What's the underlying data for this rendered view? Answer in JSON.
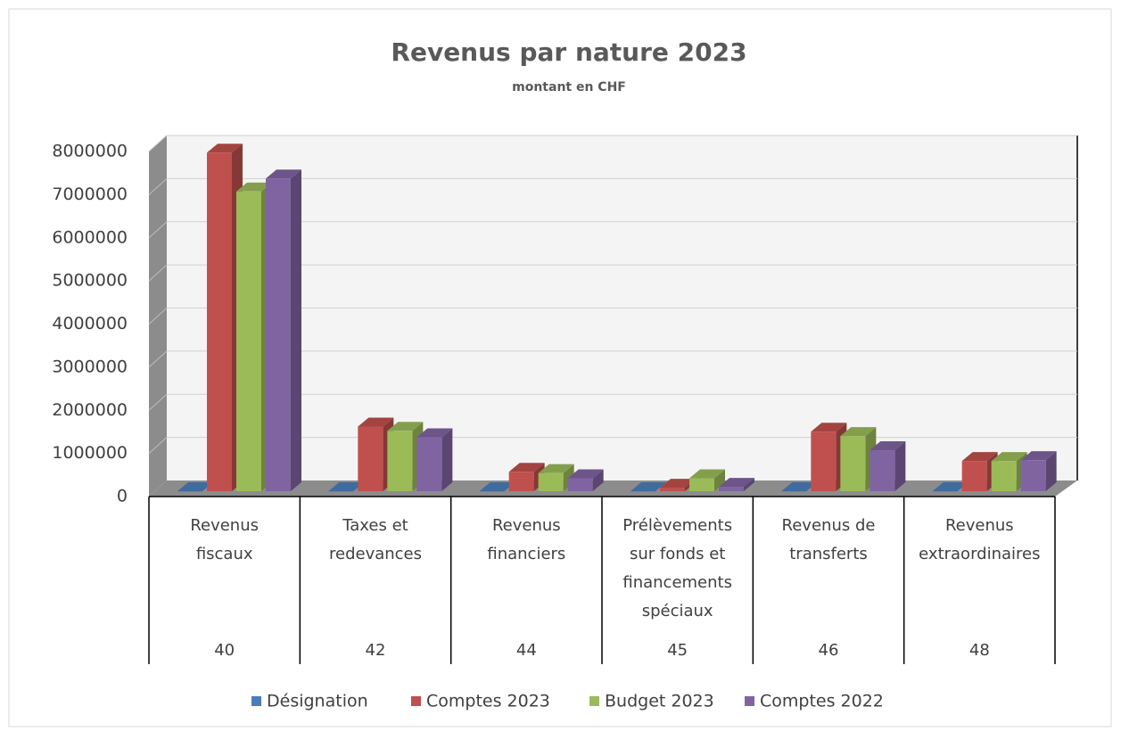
{
  "chart_data": {
    "type": "bar3d",
    "title": "Revenus par nature 2023",
    "subtitle": "montant en CHF",
    "categories": [
      [
        "Revenus",
        "fiscaux"
      ],
      [
        "Taxes et",
        "redevances"
      ],
      [
        "Revenus",
        "financiers"
      ],
      [
        "Prélèvements",
        "sur fonds et",
        "financements",
        "spéciaux"
      ],
      [
        "Revenus de",
        "transferts"
      ],
      [
        "Revenus",
        "extraordinaires"
      ]
    ],
    "category_codes": [
      "40",
      "42",
      "44",
      "45",
      "46",
      "48"
    ],
    "series": [
      {
        "name": "Désignation",
        "color": "#4a7ebb",
        "values": [
          0,
          0,
          0,
          0,
          0,
          0
        ]
      },
      {
        "name": "Comptes 2023",
        "color": "#c0504d",
        "values": [
          7850000,
          1500000,
          450000,
          80000,
          1380000,
          700000
        ]
      },
      {
        "name": "Budget 2023",
        "color": "#9bbb59",
        "values": [
          6950000,
          1400000,
          420000,
          300000,
          1280000,
          700000
        ]
      },
      {
        "name": "Comptes 2022",
        "color": "#8064a2",
        "values": [
          7250000,
          1250000,
          300000,
          100000,
          950000,
          720000
        ]
      }
    ],
    "ylim": [
      0,
      8000000
    ],
    "yticks": [
      0,
      1000000,
      2000000,
      3000000,
      4000000,
      5000000,
      6000000,
      7000000,
      8000000
    ],
    "grid": true,
    "legend": "bottom"
  }
}
